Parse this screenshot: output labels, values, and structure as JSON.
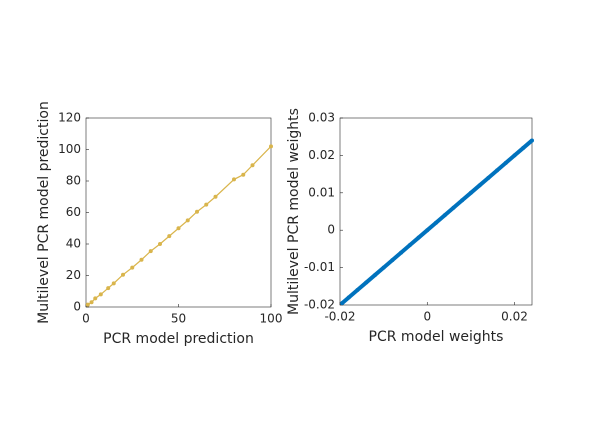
{
  "chart_data": [
    {
      "type": "scatter",
      "xlabel": "PCR model prediction",
      "ylabel": "Multilevel PCR model prediction",
      "xlim": [
        0,
        100
      ],
      "ylim": [
        0,
        120
      ],
      "xticks": [
        0,
        50,
        100
      ],
      "yticks": [
        0,
        20,
        40,
        60,
        80,
        100,
        120
      ],
      "x": [
        1,
        3,
        5,
        8,
        12,
        15,
        20,
        25,
        30,
        35,
        40,
        45,
        50,
        55,
        60,
        65,
        70,
        80,
        85,
        90,
        100
      ],
      "series": [
        {
          "color": "#d9b54c",
          "values": [
            1.5,
            3,
            5.5,
            8,
            12,
            15,
            20.5,
            25,
            30,
            35.5,
            40,
            45,
            50,
            55,
            60.5,
            65,
            70,
            81,
            84,
            90,
            102
          ]
        }
      ]
    },
    {
      "type": "scatter",
      "xlabel": "PCR model weights",
      "ylabel": "Multilevel PCR model weights",
      "xlim": [
        -0.02,
        0.024
      ],
      "ylim": [
        -0.02,
        0.03
      ],
      "xticks": [
        -0.02,
        0,
        0.02
      ],
      "yticks": [
        -0.02,
        -0.01,
        0,
        0.01,
        0.02,
        0.03
      ],
      "x": [
        -0.0195,
        -0.018,
        -0.016,
        -0.014,
        -0.012,
        -0.01,
        -0.008,
        -0.006,
        -0.004,
        -0.002,
        0,
        0.002,
        0.004,
        0.006,
        0.008,
        0.01,
        0.012,
        0.014,
        0.016,
        0.018,
        0.02,
        0.022,
        0.024
      ],
      "series": [
        {
          "color": "#0072bd",
          "values": [
            -0.0195,
            -0.018,
            -0.016,
            -0.014,
            -0.012,
            -0.01,
            -0.008,
            -0.006,
            -0.004,
            -0.002,
            0,
            0.002,
            0.004,
            0.006,
            0.008,
            0.01,
            0.012,
            0.014,
            0.016,
            0.018,
            0.02,
            0.022,
            0.024
          ]
        }
      ]
    }
  ]
}
